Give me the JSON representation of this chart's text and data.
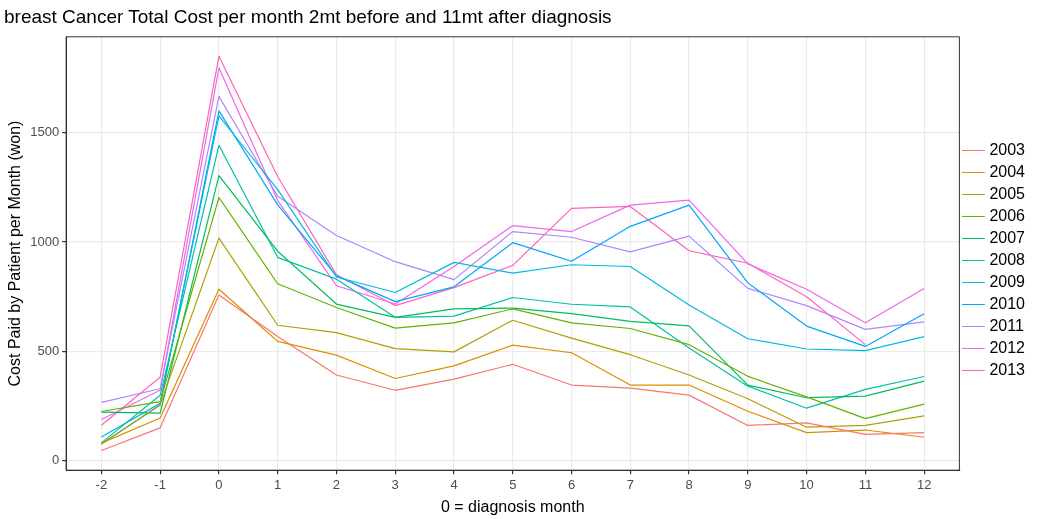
{
  "chart_data": {
    "type": "line",
    "title": "breast Cancer Total Cost per month 2mt before and 11mt after diagnosis",
    "xlabel": "0 = diagnosis month",
    "ylabel": "Cost Paid by Patient per Month (won)",
    "x": [
      -2,
      -1,
      0,
      1,
      2,
      3,
      4,
      5,
      6,
      7,
      8,
      9,
      10,
      11,
      12
    ],
    "series": [
      {
        "name": "2003",
        "color": "#f8766d",
        "values": [
          45,
          149,
          757,
          567,
          391,
          321,
          372,
          440,
          345,
          331,
          299,
          160,
          172,
          119,
          127
        ]
      },
      {
        "name": "2004",
        "color": "#db8e00",
        "values": [
          79,
          194,
          784,
          545,
          482,
          375,
          433,
          528,
          493,
          345,
          345,
          225,
          127,
          139,
          106
        ]
      },
      {
        "name": "2005",
        "color": "#aea200",
        "values": [
          75,
          254,
          1018,
          619,
          585,
          512,
          497,
          642,
          560,
          484,
          391,
          282,
          152,
          160,
          204
        ]
      },
      {
        "name": "2006",
        "color": "#64b200",
        "values": [
          224,
          269,
          1204,
          809,
          700,
          606,
          630,
          694,
          630,
          604,
          530,
          385,
          291,
          191,
          258
        ]
      },
      {
        "name": "2007",
        "color": "#00bd5c",
        "values": [
          221,
          216,
          1304,
          958,
          716,
          655,
          694,
          697,
          672,
          637,
          616,
          345,
          287,
          294,
          363
        ]
      },
      {
        "name": "2008",
        "color": "#00c1a7",
        "values": [
          80,
          298,
          1443,
          930,
          830,
          655,
          661,
          746,
          715,
          703,
          515,
          340,
          239,
          325,
          384
        ]
      },
      {
        "name": "2009",
        "color": "#00bade",
        "values": [
          107,
          261,
          1578,
          1240,
          840,
          769,
          907,
          858,
          896,
          888,
          712,
          557,
          510,
          503,
          567
        ]
      },
      {
        "name": "2010",
        "color": "#00a6ff",
        "values": [
          75,
          254,
          1601,
          1170,
          845,
          727,
          795,
          997,
          912,
          1072,
          1169,
          813,
          615,
          522,
          672
        ]
      },
      {
        "name": "2011",
        "color": "#b385ff",
        "values": [
          266,
          328,
          1667,
          1210,
          1030,
          910,
          828,
          1048,
          1022,
          955,
          1027,
          788,
          709,
          600,
          634
        ]
      },
      {
        "name": "2012",
        "color": "#ef67eb",
        "values": [
          187,
          321,
          1798,
          1190,
          800,
          716,
          888,
          1075,
          1048,
          1169,
          1192,
          900,
          784,
          630,
          787
        ]
      },
      {
        "name": "2013",
        "color": "#ff63b6",
        "values": [
          161,
          381,
          1851,
          1300,
          850,
          709,
          791,
          893,
          1154,
          1163,
          960,
          903,
          749,
          530,
          null
        ]
      }
    ],
    "xlim": [
      -2.6,
      12.6
    ],
    "xticks": [
      -2,
      -1,
      0,
      1,
      2,
      3,
      4,
      5,
      6,
      7,
      8,
      9,
      10,
      11,
      12
    ],
    "ylim": [
      -45,
      1940
    ],
    "yticks": [
      0,
      500,
      1000,
      1500
    ],
    "grid": true,
    "legend": "right",
    "marker": "none",
    "line_style": "solid"
  }
}
